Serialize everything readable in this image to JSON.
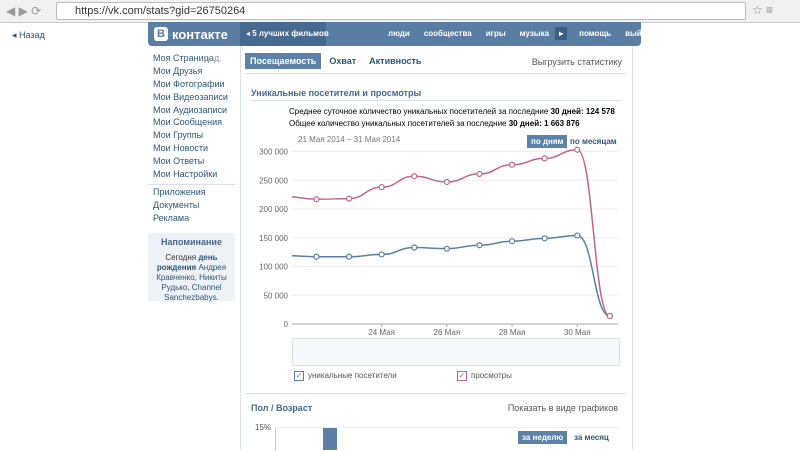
{
  "browser": {
    "url": "https://vk.com/stats?gid=26750264"
  },
  "back": "Назад",
  "header": {
    "logo": "контакте",
    "audio": "5 лучших фильмов",
    "nav": [
      "люди",
      "сообщества",
      "игры",
      "музыка",
      "помощь",
      "выйти"
    ]
  },
  "sidebar": {
    "edit": "ред.",
    "menu": [
      "Моя Страница",
      "Мои Друзья",
      "Мои Фотографии",
      "Мои Видеозаписи",
      "Мои Аудиозаписи",
      "Мои Сообщения",
      "Мои Группы",
      "Мои Новости",
      "Мои Ответы",
      "Мои Настройки"
    ],
    "extra": [
      "Приложения",
      "Документы",
      "Реклама"
    ],
    "reminder": {
      "title": "Напоминание",
      "text": "Сегодня",
      "bold": "день рождения",
      "names": "Андрея Кравченко, Никиты Рудько, Channel Sanchezbabys."
    }
  },
  "tabs": [
    "Посещаемость",
    "Охват",
    "Активность"
  ],
  "export": "Выгрузить статистику",
  "section": {
    "title": "Уникальные посетители и просмотры",
    "stats": [
      {
        "text": "Среднее суточное количество уникальных посетителей за последние",
        "period": "30 дней:",
        "value": "124 578"
      },
      {
        "text": "Общее количество уникальных посетителей за последние",
        "period": "30 дней:",
        "value": "1 663 876"
      }
    ],
    "range": "21 Мая 2014 – 31 Мая 2014",
    "buttons": [
      "по дням",
      "по месяцам"
    ]
  },
  "chart_data": {
    "type": "line",
    "x": [
      21,
      22,
      23,
      24,
      25,
      26,
      27,
      28,
      29,
      30,
      31
    ],
    "xlim": [
      21.25,
      31.25
    ],
    "xticks": [
      {
        "value": 24,
        "label": "24 Мая"
      },
      {
        "value": 26,
        "label": "26 Мая"
      },
      {
        "value": 28,
        "label": "28 Мая"
      },
      {
        "value": 30,
        "label": "30 Мая"
      }
    ],
    "ylim": [
      0,
      320000
    ],
    "yticks": [
      0,
      {
        "value": 50000,
        "label": "50 000"
      },
      {
        "value": 100000,
        "label": "100 000"
      },
      {
        "value": 150000,
        "label": "150 000"
      },
      {
        "value": 200000,
        "label": "200 000"
      },
      {
        "value": 250000,
        "label": "250 000"
      },
      {
        "value": 300000,
        "label": "300 000"
      }
    ],
    "grid": true,
    "series": [
      {
        "name": "уникальные посетители",
        "color": "#5b7fa6",
        "values": [
          119000,
          117000,
          117000,
          121000,
          133000,
          131000,
          137000,
          144000,
          149000,
          154000,
          14000
        ]
      },
      {
        "name": "просмотры",
        "color": "#c0668e",
        "values": [
          222000,
          217000,
          218000,
          238000,
          257000,
          247000,
          261000,
          277000,
          288000,
          303000,
          14000
        ]
      }
    ]
  },
  "demography": {
    "title": "Пол / Возраст",
    "link": "Показать в виде графиков",
    "tick": "15%",
    "buttons": [
      "за неделю",
      "за месяц"
    ]
  }
}
